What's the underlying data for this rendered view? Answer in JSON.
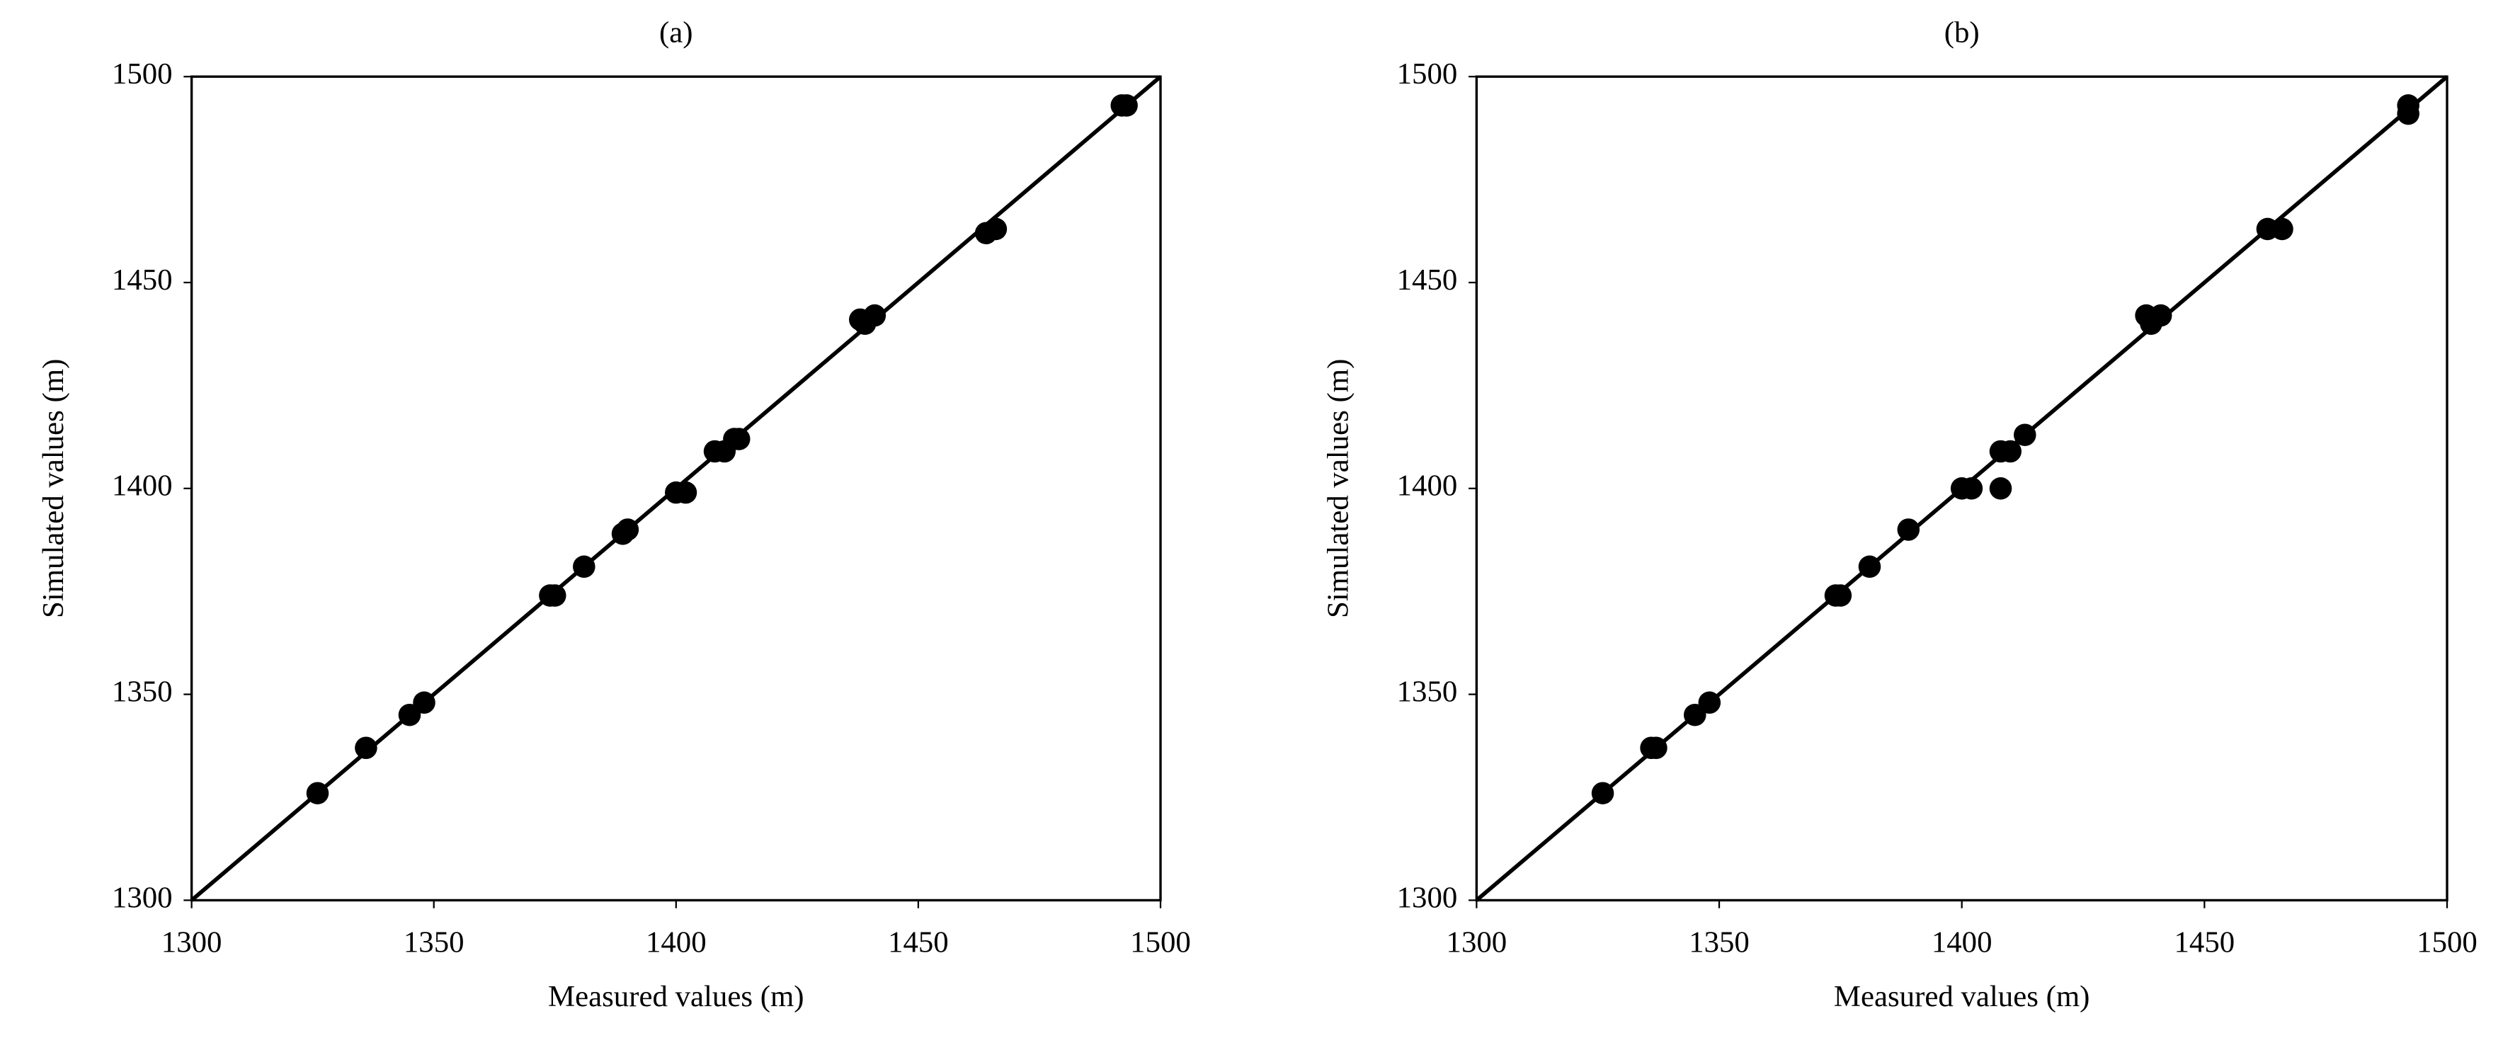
{
  "chart_data": [
    {
      "type": "scatter",
      "title": "(a)",
      "x_label": "Measured values (m)",
      "y_label": "Simulated values (m)",
      "color": "#000000",
      "identity_line": true,
      "x": [
        1326,
        1336,
        1345,
        1348,
        1374,
        1375,
        1381,
        1389,
        1390,
        1400,
        1402,
        1408,
        1410,
        1412,
        1413,
        1438,
        1439,
        1441,
        1464,
        1466,
        1492,
        1493
      ],
      "y": [
        1326,
        1337,
        1345,
        1348,
        1374,
        1374,
        1381,
        1389,
        1390,
        1399,
        1399,
        1409,
        1409,
        1412,
        1412,
        1441,
        1440,
        1442,
        1462,
        1463,
        1493,
        1493
      ],
      "xlim": [
        1300,
        1500
      ],
      "ylim": [
        1300,
        1500
      ],
      "xticks": [
        1300,
        1350,
        1400,
        1450,
        1500
      ],
      "yticks": [
        1300,
        1350,
        1400,
        1450,
        1500
      ]
    },
    {
      "type": "scatter",
      "title": "(b)",
      "x_label": "Measured values (m)",
      "y_label": "Simulated values (m)",
      "color": "#000000",
      "identity_line": true,
      "x": [
        1326,
        1336,
        1337,
        1345,
        1348,
        1374,
        1375,
        1381,
        1389,
        1400,
        1402,
        1408,
        1410,
        1413,
        1408,
        1438,
        1439,
        1441,
        1463,
        1466,
        1492,
        1492
      ],
      "y": [
        1326,
        1337,
        1337,
        1345,
        1348,
        1374,
        1374,
        1381,
        1390,
        1400,
        1400,
        1409,
        1409,
        1413,
        1400,
        1442,
        1440,
        1442,
        1463,
        1463,
        1493,
        1491
      ],
      "xlim": [
        1300,
        1500
      ],
      "ylim": [
        1300,
        1500
      ],
      "xticks": [
        1300,
        1350,
        1400,
        1450,
        1500
      ],
      "yticks": [
        1300,
        1350,
        1400,
        1450,
        1500
      ]
    }
  ]
}
